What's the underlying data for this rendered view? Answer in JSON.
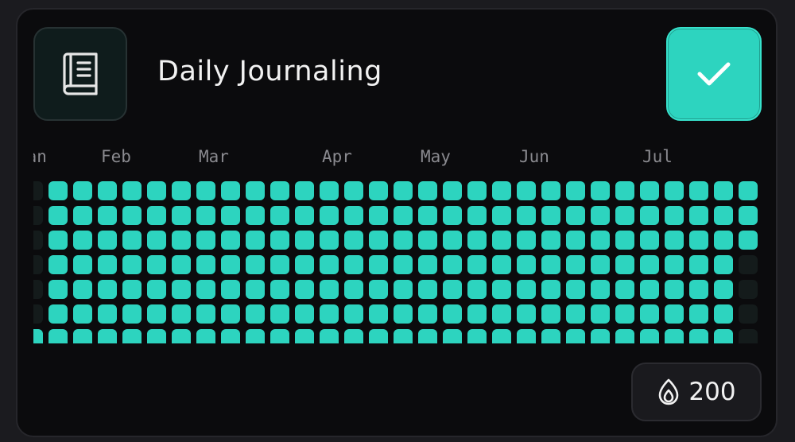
{
  "habit": {
    "title": "Daily Journaling",
    "icon": "book-icon",
    "complete_icon": "checkmark-icon",
    "accent_color": "#2dd4bf"
  },
  "heatmap": {
    "months": [
      "Jan",
      "Feb",
      "Mar",
      "Apr",
      "May",
      "Jun",
      "Jul"
    ],
    "weeks": [
      [
        0,
        0,
        0,
        0,
        0,
        0,
        1
      ],
      [
        1,
        1,
        1,
        1,
        1,
        1,
        1
      ],
      [
        1,
        1,
        1,
        1,
        1,
        1,
        1
      ],
      [
        1,
        1,
        1,
        1,
        1,
        1,
        1
      ],
      [
        1,
        1,
        1,
        1,
        1,
        1,
        1
      ],
      [
        1,
        1,
        1,
        1,
        1,
        1,
        1
      ],
      [
        1,
        1,
        1,
        1,
        1,
        1,
        1
      ],
      [
        1,
        1,
        1,
        1,
        1,
        1,
        1
      ],
      [
        1,
        1,
        1,
        1,
        1,
        1,
        1
      ],
      [
        1,
        1,
        1,
        1,
        1,
        1,
        1
      ],
      [
        1,
        1,
        1,
        1,
        1,
        1,
        1
      ],
      [
        1,
        1,
        1,
        1,
        1,
        1,
        1
      ],
      [
        1,
        1,
        1,
        1,
        1,
        1,
        1
      ],
      [
        1,
        1,
        1,
        1,
        1,
        1,
        1
      ],
      [
        1,
        1,
        1,
        1,
        1,
        1,
        1
      ],
      [
        1,
        1,
        1,
        1,
        1,
        1,
        1
      ],
      [
        1,
        1,
        1,
        1,
        1,
        1,
        1
      ],
      [
        1,
        1,
        1,
        1,
        1,
        1,
        1
      ],
      [
        1,
        1,
        1,
        1,
        1,
        1,
        1
      ],
      [
        1,
        1,
        1,
        1,
        1,
        1,
        1
      ],
      [
        1,
        1,
        1,
        1,
        1,
        1,
        1
      ],
      [
        1,
        1,
        1,
        1,
        1,
        1,
        1
      ],
      [
        1,
        1,
        1,
        1,
        1,
        1,
        1
      ],
      [
        1,
        1,
        1,
        1,
        1,
        1,
        1
      ],
      [
        1,
        1,
        1,
        1,
        1,
        1,
        1
      ],
      [
        1,
        1,
        1,
        1,
        1,
        1,
        1
      ],
      [
        1,
        1,
        1,
        1,
        1,
        1,
        1
      ],
      [
        1,
        1,
        1,
        1,
        1,
        1,
        1
      ],
      [
        1,
        1,
        1,
        1,
        1,
        1,
        1
      ],
      [
        1,
        1,
        1,
        0,
        0,
        0,
        0
      ]
    ]
  },
  "streak": {
    "icon": "fire-icon",
    "count": "200"
  }
}
